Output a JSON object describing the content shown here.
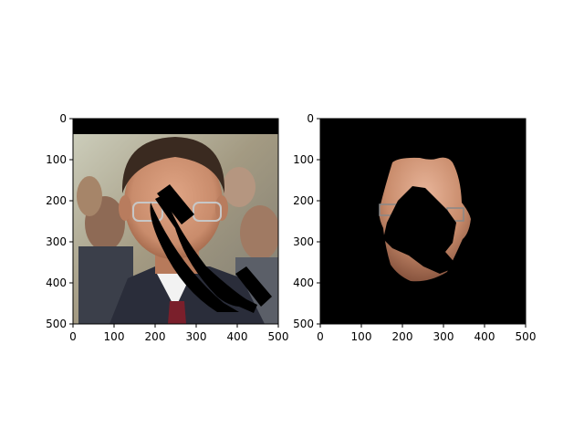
{
  "figure": {
    "panels": [
      {
        "id": "left",
        "content": "photo of a man in a suit with a black telephone-handset icon overlaid",
        "xticks": [
          "0",
          "100",
          "200",
          "300",
          "400",
          "500"
        ],
        "yticks": [
          "0",
          "100",
          "200",
          "300",
          "400",
          "500"
        ],
        "xlim": [
          0,
          500
        ],
        "ylim": [
          500,
          0
        ]
      },
      {
        "id": "right",
        "content": "segmented face region on black background with black telephone-handset mask",
        "xticks": [
          "0",
          "100",
          "200",
          "300",
          "400",
          "500"
        ],
        "yticks": [
          "0",
          "100",
          "200",
          "300",
          "400",
          "500"
        ],
        "xlim": [
          0,
          500
        ],
        "ylim": [
          500,
          0
        ]
      }
    ],
    "colors": {
      "background": "#ffffff",
      "black": "#000000",
      "skin": "#c98c6c",
      "skin_dark": "#a9694c",
      "hair": "#3a2a20",
      "suit": "#2a2d3a",
      "shirt": "#f2f2f2",
      "tie": "#7a1f2b",
      "crowd": "#b8b39d"
    },
    "icons": [
      "telephone-icon"
    ]
  }
}
